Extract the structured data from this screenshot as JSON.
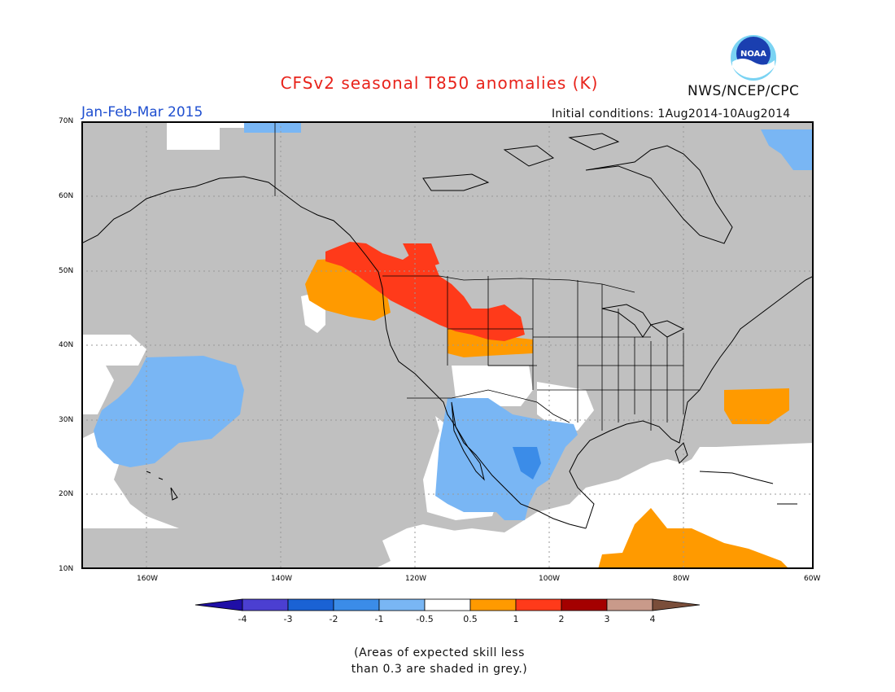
{
  "title": "CFSv2 seasonal T850 anomalies (K)",
  "agency": "NWS/NCEP/CPC",
  "logo_text": "NOAA",
  "period": "Jan-Feb-Mar 2015",
  "initial_conditions": "Initial conditions: 1Aug2014-10Aug2014",
  "lat_labels": [
    "70N",
    "60N",
    "50N",
    "40N",
    "30N",
    "20N",
    "10N"
  ],
  "lon_labels": [
    "160W",
    "140W",
    "120W",
    "100W",
    "80W",
    "60W"
  ],
  "colorbar_labels": [
    "-4",
    "-3",
    "-2",
    "-1",
    "-0.5",
    "0.5",
    "1",
    "2",
    "3",
    "4"
  ],
  "colorbar_colors": [
    "#1f0fa6",
    "#4b3fd1",
    "#1a62d4",
    "#3b8ce8",
    "#79b6f4",
    "#ffffff",
    "#ff9a00",
    "#ff3a1a",
    "#a40000",
    "#c99a8a",
    "#7a4e3a"
  ],
  "note_line1": "(Areas of expected skill less",
  "note_line2": "than 0.3 are shaded in grey.)"
}
